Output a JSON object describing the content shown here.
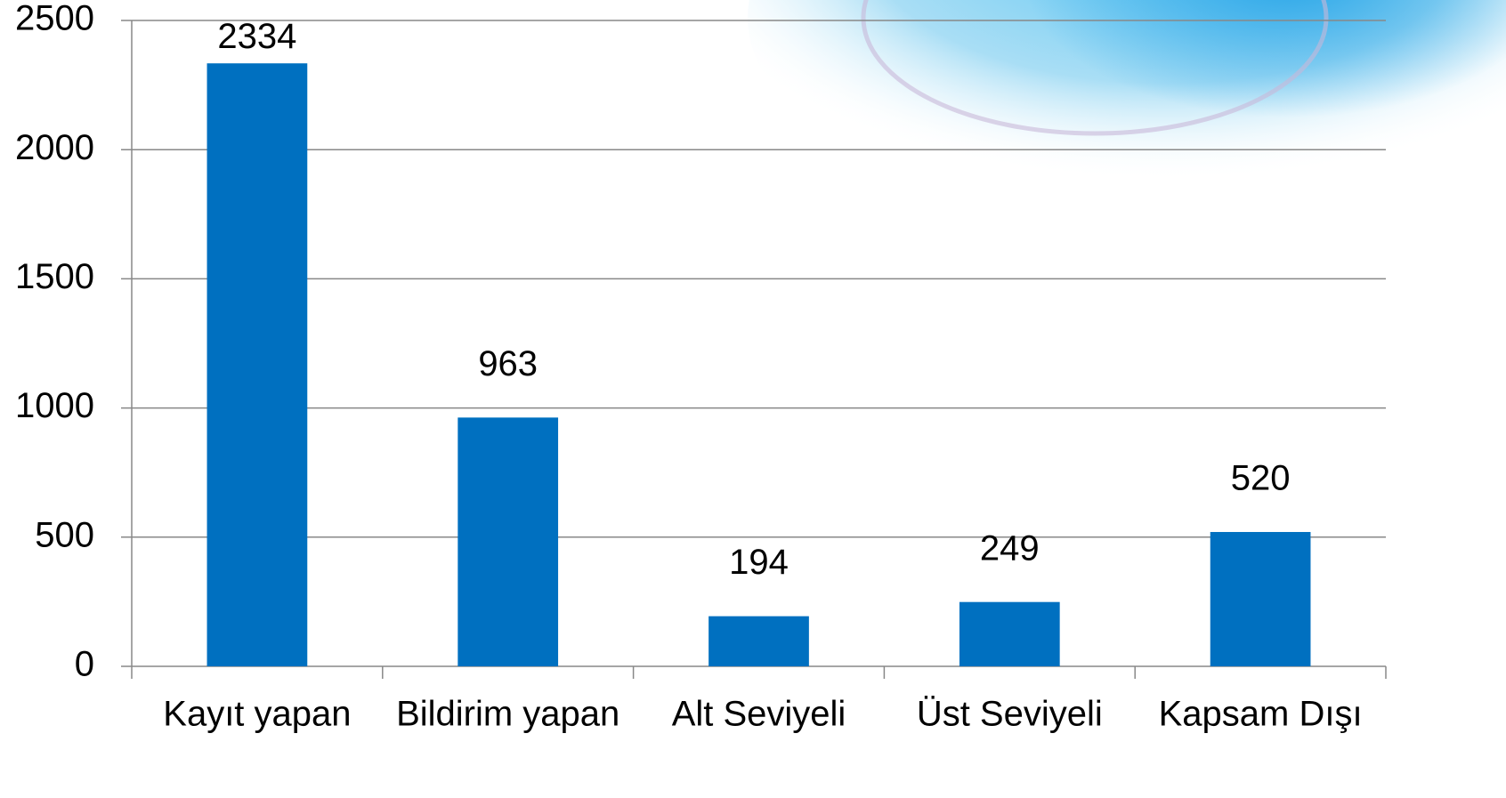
{
  "chart_data": {
    "type": "bar",
    "categories": [
      "Kayıt yapan",
      "Bildirim yapan",
      "Alt Seviyeli",
      "Üst Seviyeli",
      "Kapsam Dışı"
    ],
    "values": [
      2334,
      963,
      194,
      249,
      520
    ],
    "color": "#0070c0",
    "ylim": [
      0,
      2500
    ],
    "yticks": [
      0,
      500,
      1000,
      1500,
      2000,
      2500
    ],
    "grid": true
  }
}
